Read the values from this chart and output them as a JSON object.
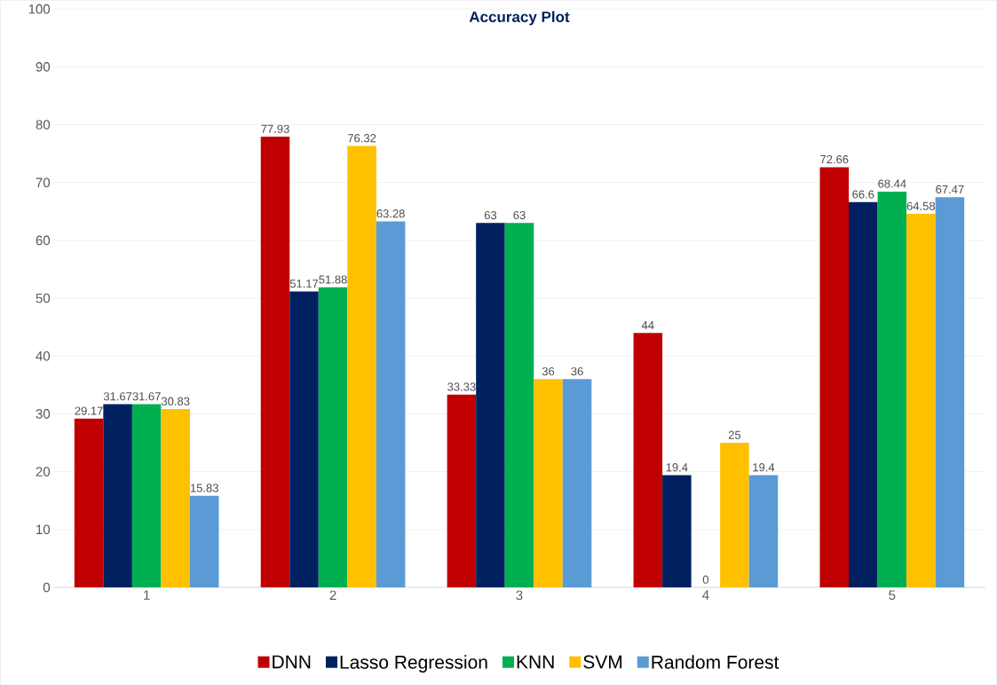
{
  "chart_data": {
    "type": "bar",
    "title": "Accuracy Plot",
    "categories": [
      "1",
      "2",
      "3",
      "4",
      "5"
    ],
    "series": [
      {
        "name": "DNN",
        "color": "#c00000",
        "values": [
          29.17,
          77.93,
          33.33,
          44,
          72.66
        ]
      },
      {
        "name": "Lasso Regression",
        "color": "#002060",
        "values": [
          31.67,
          51.17,
          63,
          19.4,
          66.6
        ]
      },
      {
        "name": "KNN",
        "color": "#00b050",
        "values": [
          31.67,
          51.88,
          63,
          0,
          68.44
        ]
      },
      {
        "name": "SVM",
        "color": "#ffc000",
        "values": [
          30.83,
          76.32,
          36,
          25,
          64.58
        ]
      },
      {
        "name": "Random Forest",
        "color": "#5b9bd5",
        "values": [
          15.83,
          63.28,
          36,
          19.4,
          67.47
        ]
      }
    ],
    "ylim": [
      0,
      100
    ],
    "yticks": [
      0,
      10,
      20,
      30,
      40,
      50,
      60,
      70,
      80,
      90,
      100
    ],
    "grid": "y",
    "legend": "bottom",
    "data_labels": true
  }
}
